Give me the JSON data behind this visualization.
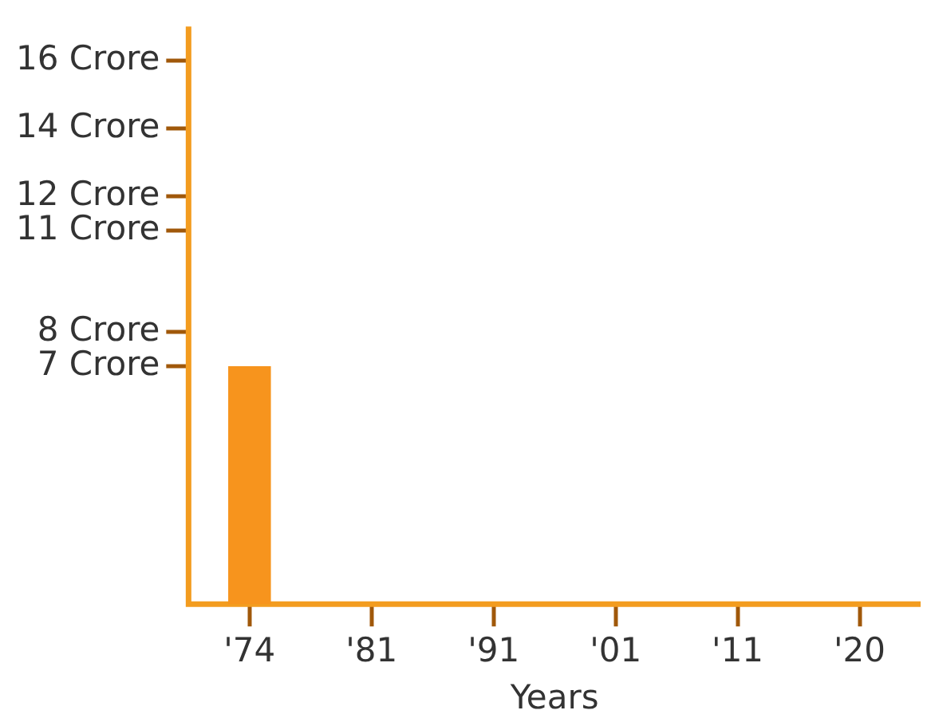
{
  "chart_data": {
    "type": "bar",
    "xlabel": "Years",
    "categories": [
      "'74",
      "'81",
      "'91",
      "'01",
      "'11",
      "'20"
    ],
    "values": [
      7,
      null,
      null,
      null,
      null,
      null
    ],
    "color": "#f7941d",
    "ylim": [
      0,
      17
    ],
    "yticks": [
      {
        "value": 7,
        "label": "7 Crore"
      },
      {
        "value": 8,
        "label": "8 Crore"
      },
      {
        "value": 11,
        "label": "11 Crore"
      },
      {
        "value": 12,
        "label": "12 Crore"
      },
      {
        "value": 14,
        "label": "14 Crore"
      },
      {
        "value": 16,
        "label": "16 Crore"
      }
    ],
    "grid": false,
    "legend": false
  }
}
